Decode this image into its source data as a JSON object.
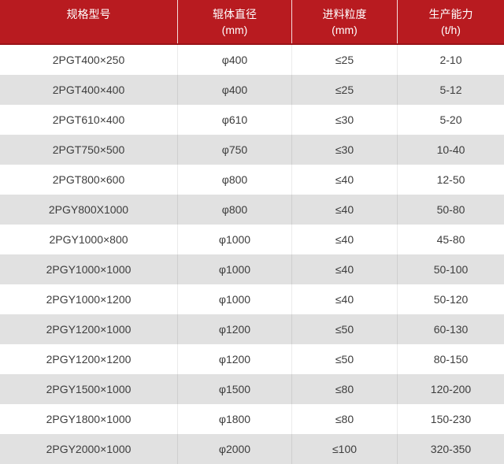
{
  "colors": {
    "header_bg": "#b81b20",
    "header_border_bottom": "#9a1419",
    "header_text": "#ffffff",
    "row_bg": "#ffffff",
    "row_alt_bg": "#e1e1e1",
    "body_text": "#3d3d3d",
    "body_divider": "#dddddd"
  },
  "chart_data": {
    "type": "table",
    "title": "",
    "columns": [
      {
        "label": "规格型号",
        "sub": ""
      },
      {
        "label": "辊体直径",
        "sub": "(mm)"
      },
      {
        "label": "进料粒度",
        "sub": "(mm)"
      },
      {
        "label": "生产能力",
        "sub": "(t/h)"
      }
    ],
    "rows": [
      [
        "2PGT400×250",
        "φ400",
        "≤25",
        "2-10"
      ],
      [
        "2PGT400×400",
        "φ400",
        "≤25",
        "5-12"
      ],
      [
        "2PGT610×400",
        "φ610",
        "≤30",
        "5-20"
      ],
      [
        "2PGT750×500",
        "φ750",
        "≤30",
        "10-40"
      ],
      [
        "2PGT800×600",
        "φ800",
        "≤40",
        "12-50"
      ],
      [
        "2PGY800X1000",
        "φ800",
        "≤40",
        "50-80"
      ],
      [
        "2PGY1000×800",
        "φ1000",
        "≤40",
        "45-80"
      ],
      [
        "2PGY1000×1000",
        "φ1000",
        "≤40",
        "50-100"
      ],
      [
        "2PGY1000×1200",
        "φ1000",
        "≤40",
        "50-120"
      ],
      [
        "2PGY1200×1000",
        "φ1200",
        "≤50",
        "60-130"
      ],
      [
        "2PGY1200×1200",
        "φ1200",
        "≤50",
        "80-150"
      ],
      [
        "2PGY1500×1000",
        "φ1500",
        "≤80",
        "120-200"
      ],
      [
        "2PGY1800×1000",
        "φ1800",
        "≤80",
        "150-230"
      ],
      [
        "2PGY2000×1000",
        "φ2000",
        "≤100",
        "320-350"
      ]
    ]
  }
}
